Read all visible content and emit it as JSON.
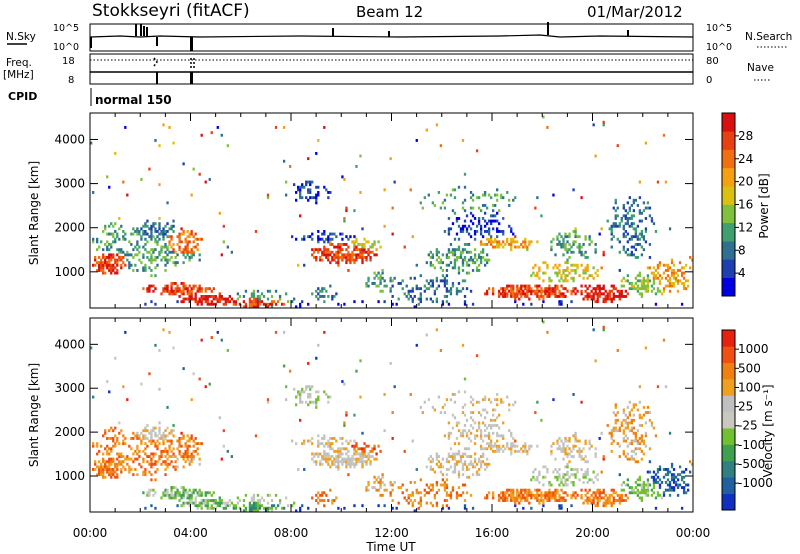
{
  "header": {
    "station": "Stokkseyri (fitACF)",
    "beam": "Beam 12",
    "date": "01/Mar/2012"
  },
  "strips": {
    "nsky_label": "N.Sky",
    "nsky_ticks": [
      "10^5",
      "10^0"
    ],
    "nsearch_label": "N.Search",
    "nsearch_ticks": [
      "10^5",
      "10^0"
    ],
    "freq_label_1": "Freq.",
    "freq_label_2": "[MHz]",
    "freq_ticks": [
      "18",
      "8"
    ],
    "nave_label": "Nave",
    "nave_ticks": [
      "80",
      "0"
    ],
    "cpid_label": "CPID",
    "cpid_value": "normal 150"
  },
  "chart_data": [
    {
      "type": "heatmap",
      "name": "power",
      "ylabel": "Slant Range [km]",
      "xlabel": "Time UT",
      "ylim": [
        180,
        4600
      ],
      "yticks": [
        "1000",
        "2000",
        "3000",
        "4000"
      ],
      "xticks": [
        "00:00",
        "04:00",
        "08:00",
        "12:00",
        "16:00",
        "20:00",
        "00:00"
      ],
      "colorbar": {
        "label": "Power [dB]",
        "ticks": [
          "4",
          "8",
          "12",
          "16",
          "20",
          "24",
          "28"
        ],
        "colors": [
          "#0000e0",
          "#1f3fb0",
          "#2f6f8f",
          "#3f9f6f",
          "#7fc13f",
          "#dcc010",
          "#f4a010",
          "#f07010",
          "#e84010",
          "#d81010"
        ]
      }
    },
    {
      "type": "heatmap",
      "name": "velocity",
      "ylabel": "Slant Range [km]",
      "xlabel": "Time UT",
      "ylim": [
        180,
        4600
      ],
      "yticks": [
        "1000",
        "2000",
        "3000",
        "4000"
      ],
      "xticks": [
        "00:00",
        "04:00",
        "08:00",
        "12:00",
        "16:00",
        "20:00",
        "00:00"
      ],
      "colorbar": {
        "label": "Velocity [m s⁻¹]",
        "ticks": [
          "1000",
          "500",
          "100",
          "25",
          "-25",
          "-100",
          "-500",
          "-1000"
        ],
        "colors": [
          "#1030c0",
          "#2060a0",
          "#2f8080",
          "#3fa050",
          "#70c030",
          "#c8c8c0",
          "#c0c0c0",
          "#f0a020",
          "#f08010",
          "#f05010",
          "#e82010"
        ]
      }
    }
  ]
}
